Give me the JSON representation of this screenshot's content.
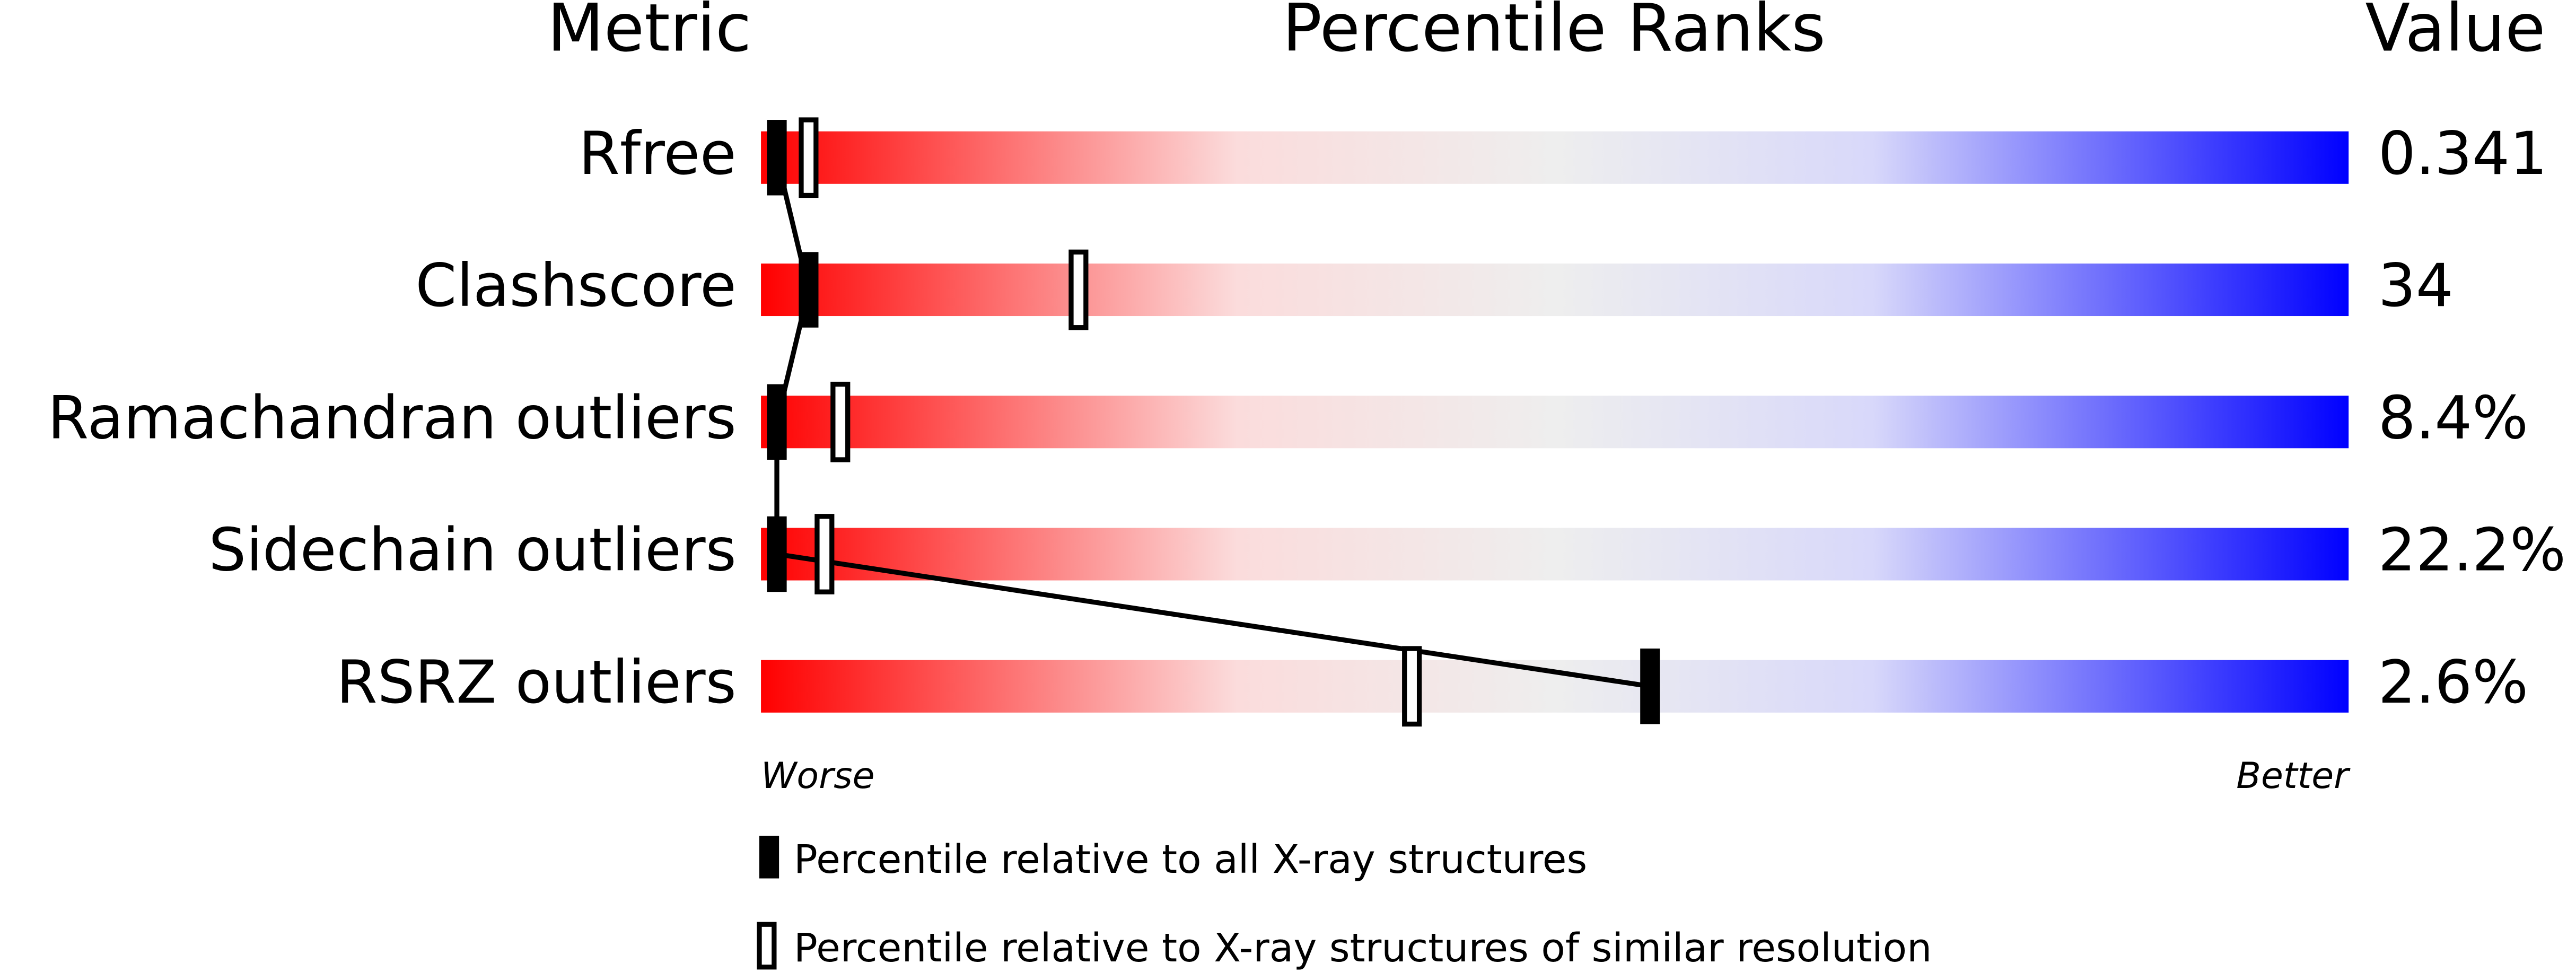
{
  "chart_data": {
    "type": "percentile-slider",
    "column_headers": [
      "Metric",
      "Percentile Ranks",
      "Value"
    ],
    "categories": [
      "Rfree",
      "Clashscore",
      "Ramachandran outliers",
      "Sidechain outliers",
      "RSRZ outliers"
    ],
    "value_column": [
      "0.341",
      "34",
      "8.4%",
      "22.2%",
      "2.6%"
    ],
    "xlim": [
      0,
      100
    ],
    "axis_labels": [
      "Worse",
      "Better"
    ],
    "series": [
      {
        "name": "Percentile relative to all X-ray structures",
        "color": "#000000",
        "values": [
          1,
          3,
          1,
          1,
          56
        ]
      },
      {
        "name": "Percentile relative to X-ray structures of similar resolution",
        "color": "#ffffff",
        "values": [
          3,
          20,
          5,
          4,
          41
        ]
      }
    ]
  }
}
